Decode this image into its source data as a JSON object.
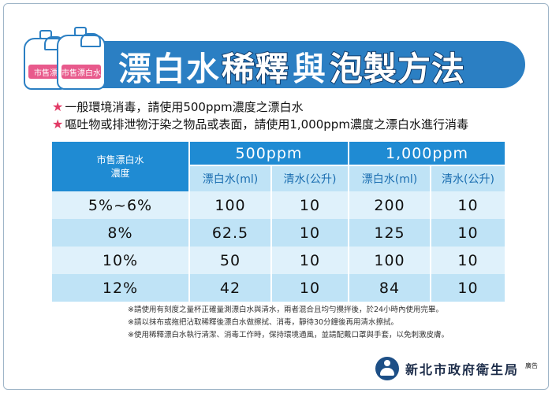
{
  "title": {
    "part1": "漂白水",
    "part2": "稀釋",
    "part3": "與",
    "part4": "泡製方法"
  },
  "bottle_label_1": "市售漂",
  "bottle_label_2": "市售漂白水",
  "instructions": [
    "一般環境消毒，請使用500ppm濃度之漂白水",
    "嘔吐物或排泄物汙染之物品或表面，請使用1,000ppm濃度之漂白水進行消毒"
  ],
  "table": {
    "concentration_header": "市售漂白水",
    "concentration_header_2": "濃度",
    "groups": [
      "500ppm",
      "1,000ppm"
    ],
    "subheaders": [
      "漂白水(ml)",
      "清水(公升)",
      "漂白水(ml)",
      "清水(公升)"
    ],
    "rows": [
      [
        "5%~6%",
        "100",
        "10",
        "200",
        "10"
      ],
      [
        "8%",
        "62.5",
        "10",
        "125",
        "10"
      ],
      [
        "10%",
        "50",
        "10",
        "100",
        "10"
      ],
      [
        "12%",
        "42",
        "10",
        "84",
        "10"
      ]
    ]
  },
  "notes": [
    "※請使用有刻度之量杯正確量測漂白水與清水，兩者混合且均勻攪拌後，於24小時內使用完畢。",
    "※請以抹布或拖把沾取稀釋後漂白水做擦拭、消毒，靜待30分鐘後再用清水擦拭。",
    "※使用稀釋漂白水執行清潔、消毒工作時，保持環境通風，並請配戴口罩與手套，以免刺激皮膚。"
  ],
  "organization": "新北市政府衛生局",
  "ad_label": "廣告",
  "colors": {
    "banner": "#2b7fc3",
    "header": "#1f8bd3",
    "subheader": "#bfe3f6",
    "row_light": "#dff1fb",
    "star": "#e23b66"
  },
  "icons": [
    "bleach-bottle-icon",
    "star-icon",
    "health-bureau-logo-icon"
  ]
}
